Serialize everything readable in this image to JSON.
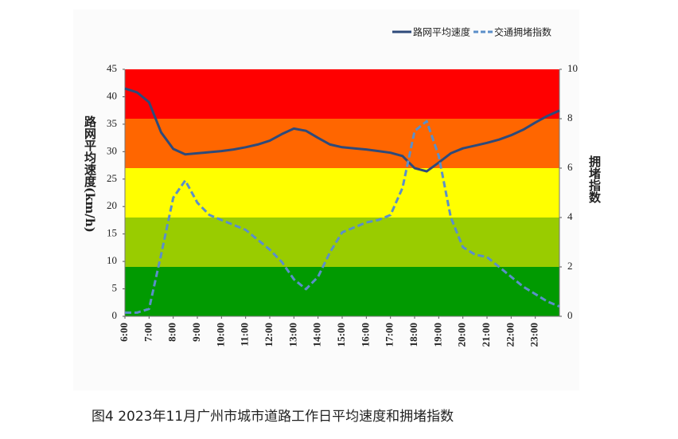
{
  "chart_data": {
    "type": "line",
    "caption": "图4  2023年11月广州市城市道路工作日平均速度和拥堵指数",
    "ylabel": "路网平均速度(km/h)",
    "y2label": "拥堵指数",
    "xlim": [
      6,
      24
    ],
    "xticks": [
      {
        "value": 6,
        "label": "6:00"
      },
      {
        "value": 7,
        "label": "7:00"
      },
      {
        "value": 8,
        "label": "8:00"
      },
      {
        "value": 9,
        "label": "9:00"
      },
      {
        "value": 10,
        "label": "10:00"
      },
      {
        "value": 11,
        "label": "11:00"
      },
      {
        "value": 12,
        "label": "12:00"
      },
      {
        "value": 13,
        "label": "13:00"
      },
      {
        "value": 14,
        "label": "14:00"
      },
      {
        "value": 15,
        "label": "15:00"
      },
      {
        "value": 16,
        "label": "16:00"
      },
      {
        "value": 17,
        "label": "17:00"
      },
      {
        "value": 18,
        "label": "18:00"
      },
      {
        "value": 19,
        "label": "19:00"
      },
      {
        "value": 20,
        "label": "20:00"
      },
      {
        "value": 21,
        "label": "21:00"
      },
      {
        "value": 22,
        "label": "22:00"
      },
      {
        "value": 23,
        "label": "23:00"
      }
    ],
    "ylim": [
      0,
      45
    ],
    "yticks": [
      0,
      5,
      10,
      15,
      20,
      25,
      30,
      35,
      40,
      45
    ],
    "y2lim": [
      0,
      10
    ],
    "y2ticks": [
      0,
      2,
      4,
      6,
      8,
      10
    ],
    "bands": [
      {
        "from": 0,
        "to": 2,
        "color": "#019a01"
      },
      {
        "from": 2,
        "to": 4,
        "color": "#99cc00"
      },
      {
        "from": 4,
        "to": 6,
        "color": "#ffff00"
      },
      {
        "from": 6,
        "to": 8,
        "color": "#ff6600"
      },
      {
        "from": 8,
        "to": 10,
        "color": "#ff0000"
      }
    ],
    "legend": "top-right",
    "x": [
      6,
      6.5,
      7,
      7.5,
      8,
      8.5,
      9,
      9.5,
      10,
      10.5,
      11,
      11.5,
      12,
      12.5,
      13,
      13.5,
      14,
      14.5,
      15,
      15.5,
      16,
      16.5,
      17,
      17.5,
      18,
      18.5,
      19,
      19.5,
      20,
      20.5,
      21,
      21.5,
      22,
      22.5,
      23,
      23.5,
      24
    ],
    "series": [
      {
        "name": "路网平均速度",
        "color": "#2e4a7a",
        "line_style": "solid",
        "values": [
          41.5,
          40.8,
          39,
          33.5,
          30.5,
          29.5,
          29.7,
          29.9,
          30.1,
          30.4,
          30.8,
          31.3,
          32,
          33.2,
          34.2,
          33.8,
          32.5,
          31.3,
          30.8,
          30.6,
          30.4,
          30.1,
          29.8,
          29.2,
          27,
          26.4,
          28,
          29.7,
          30.6,
          31.1,
          31.6,
          32.2,
          33,
          34,
          35.3,
          36.5,
          37.5
        ]
      },
      {
        "name": "交通拥堵指数",
        "color": "#5b8fc9",
        "line_style": "dashed",
        "axis": "y2",
        "values": [
          0.15,
          0.15,
          0.3,
          2.5,
          4.8,
          5.5,
          4.6,
          4.1,
          3.9,
          3.7,
          3.5,
          3.1,
          2.7,
          2.2,
          1.5,
          1.1,
          1.6,
          2.6,
          3.4,
          3.6,
          3.8,
          3.9,
          4.1,
          5.2,
          7.5,
          7.9,
          6.5,
          4.0,
          2.8,
          2.5,
          2.4,
          2.0,
          1.6,
          1.2,
          0.9,
          0.6,
          0.4
        ]
      }
    ]
  }
}
